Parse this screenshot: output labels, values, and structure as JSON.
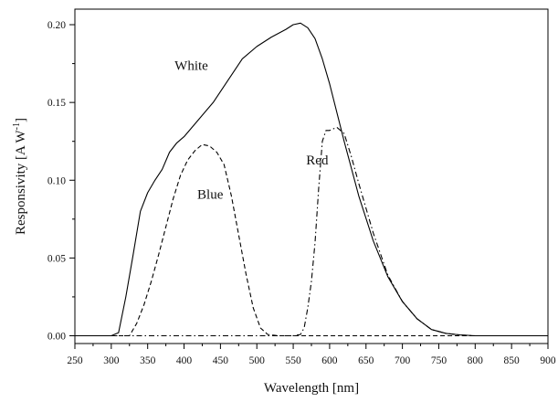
{
  "chart_data": {
    "type": "line",
    "xlabel": "Wavelength [nm]",
    "ylabel": "Responsivity [A W",
    "ylabel_sup": "-1",
    "ylabel_close": "]",
    "xlim": [
      250,
      900
    ],
    "ylim": [
      -0.005,
      0.21
    ],
    "xticks": [
      250,
      300,
      350,
      400,
      450,
      500,
      550,
      600,
      650,
      700,
      750,
      800,
      850,
      900
    ],
    "yticks": [
      0.0,
      0.05,
      0.1,
      0.15,
      0.2
    ],
    "ytick_labels": [
      "0.00",
      "0.05",
      "0.10",
      "0.15",
      "0.20"
    ],
    "grid": false,
    "legend": "none",
    "series": [
      {
        "name": "White",
        "style": "solid",
        "label_at": {
          "x": 410,
          "y": 0.171
        },
        "x": [
          250,
          300,
          310,
          320,
          330,
          340,
          350,
          360,
          370,
          380,
          390,
          400,
          420,
          440,
          460,
          480,
          500,
          520,
          540,
          550,
          560,
          570,
          580,
          590,
          600,
          620,
          640,
          660,
          680,
          700,
          720,
          740,
          760,
          780,
          800,
          850,
          900
        ],
        "values": [
          0.0,
          0.0,
          0.002,
          0.025,
          0.052,
          0.08,
          0.092,
          0.1,
          0.107,
          0.118,
          0.124,
          0.128,
          0.139,
          0.15,
          0.164,
          0.178,
          0.186,
          0.192,
          0.197,
          0.2,
          0.201,
          0.198,
          0.191,
          0.178,
          0.162,
          0.125,
          0.09,
          0.061,
          0.038,
          0.022,
          0.011,
          0.004,
          0.0015,
          0.0005,
          0.0,
          0.0,
          0.0
        ]
      },
      {
        "name": "Blue",
        "style": "dashed",
        "label_at": {
          "x": 436,
          "y": 0.088
        },
        "x": [
          250,
          325,
          335,
          345,
          355,
          365,
          375,
          385,
          395,
          405,
          415,
          425,
          435,
          445,
          455,
          465,
          475,
          485,
          495,
          505,
          515,
          530,
          900
        ],
        "values": [
          0.0,
          0.0,
          0.008,
          0.02,
          0.035,
          0.052,
          0.07,
          0.088,
          0.103,
          0.113,
          0.119,
          0.123,
          0.122,
          0.118,
          0.11,
          0.09,
          0.065,
          0.04,
          0.018,
          0.005,
          0.0008,
          0.0,
          0.0
        ]
      },
      {
        "name": "Red",
        "style": "dash-dot",
        "label_at": {
          "x": 583,
          "y": 0.11
        },
        "x": [
          250,
          550,
          560,
          565,
          570,
          575,
          580,
          585,
          590,
          595,
          600,
          610,
          620,
          630,
          640,
          660,
          680,
          700,
          720,
          740,
          760,
          780,
          800,
          850,
          900
        ],
        "values": [
          0.0,
          0.0,
          0.0008,
          0.005,
          0.018,
          0.035,
          0.06,
          0.095,
          0.125,
          0.132,
          0.132,
          0.134,
          0.13,
          0.115,
          0.098,
          0.066,
          0.039,
          0.022,
          0.011,
          0.004,
          0.0015,
          0.0005,
          0.0,
          0.0,
          0.0
        ]
      }
    ]
  }
}
